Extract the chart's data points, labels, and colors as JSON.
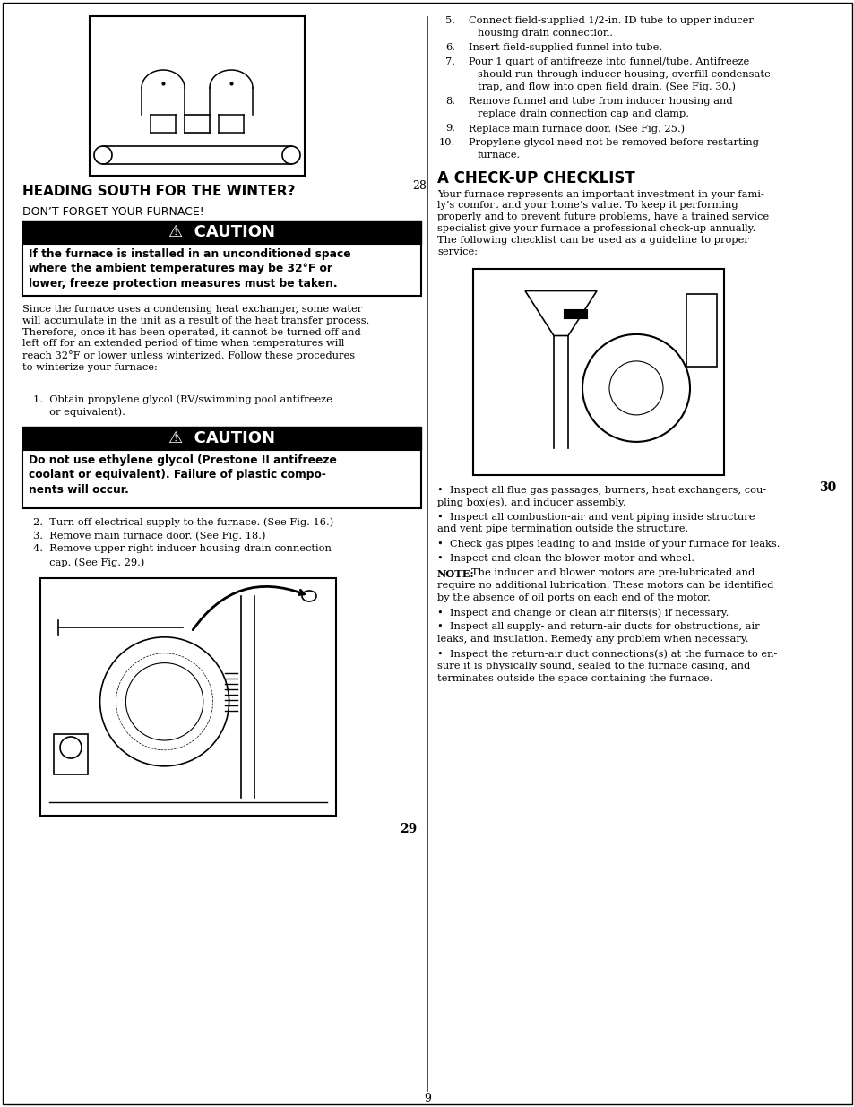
{
  "page_bg": "#ffffff",
  "page_num": "9",
  "left_col": {
    "fig28_label": "28",
    "heading": "HEADING SOUTH FOR THE WINTER?",
    "subheading": "DON’T FORGET YOUR FURNACE!",
    "caution1_title": "⚠  CAUTION",
    "caution1_body": "If the furnace is installed in an unconditioned space\nwhere the ambient temperatures may be 32°F or\nlower, freeze protection measures must be taken.",
    "body1": "Since the furnace uses a condensing heat exchanger, some water\nwill accumulate in the unit as a result of the heat transfer process.\nTherefore, once it has been operated, it cannot be turned off and\nleft off for an extended period of time when temperatures will\nreach 32°F or lower unless winterized. Follow these procedures\nto winterize your furnace:",
    "list1_a": "1.  Obtain propylene glycol (RV/swimming pool antifreeze",
    "list1_b": "     or equivalent).",
    "caution2_title": "⚠  CAUTION",
    "caution2_body": "Do not use ethylene glycol (Prestone II antifreeze\ncoolant or equivalent). Failure of plastic compo-\nnents will occur.",
    "list2": [
      "2.  Turn off electrical supply to the furnace. (See Fig. 16.)",
      "3.  Remove main furnace door. (See Fig. 18.)",
      "4.  Remove upper right inducer housing drain connection",
      "     cap. (See Fig. 29.)"
    ],
    "fig29_label": "29"
  },
  "right_col": {
    "list_top": [
      [
        "5.",
        "Connect field-supplied 1/2-in. ID tube to upper inducer\n    housing drain connection."
      ],
      [
        "6.",
        "Insert field-supplied funnel into tube."
      ],
      [
        "7.",
        "Pour 1 quart of antifreeze into funnel/tube. Antifreeze\n    should run through inducer housing, overfill condensate\n    trap, and flow into open field drain. (See Fig. 30.)"
      ],
      [
        "8.",
        "Remove funnel and tube from inducer housing and\n    replace drain connection cap and clamp."
      ],
      [
        "9.",
        "Replace main furnace door. (See Fig. 25.)"
      ],
      [
        "10.",
        "Propylene glycol need not be removed before restarting\n    furnace."
      ]
    ],
    "checklist_heading": "A CHECK-UP CHECKLIST",
    "checklist_body": "Your furnace represents an important investment in your fami-\nly’s comfort and your home’s value. To keep it performing\nproperly and to prevent future problems, have a trained service\nspecialist give your furnace a professional check-up annually.\nThe following checklist can be used as a guideline to proper\nservice:",
    "fig30_label": "30",
    "bullets": [
      "•  Inspect all flue gas passages, burners, heat exchangers, cou-\n    pling box(es), and inducer assembly.",
      "•  Inspect all combustion-air and vent piping inside structure\n    and vent pipe termination outside the structure.",
      "•  Check gas pipes leading to and inside of your furnace for leaks.",
      "•  Inspect and clean the blower motor and wheel.",
      "NOTE_The inducer and blower motors are pre-lubricated and\nrequire no additional lubrication. These motors can be identified\nby the absence of oil ports on each end of the motor.",
      "•  Inspect and change or clean air filters(s) if necessary.",
      "•  Inspect all supply- and return-air ducts for obstructions, air\n    leaks, and insulation. Remedy any problem when necessary.",
      "•  Inspect the return-air duct connections(s) at the furnace to en-\n    sure it is physically sound, sealed to the furnace casing, and\n    terminates outside the space containing the furnace."
    ]
  }
}
